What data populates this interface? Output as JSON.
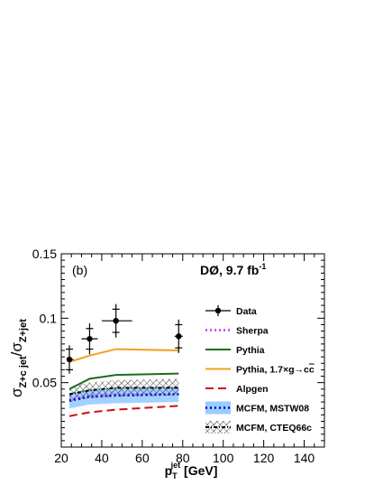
{
  "chart_data": {
    "type": "line",
    "panel_label": "(b)",
    "experiment_label": "DØ, 9.7 fb",
    "experiment_label_sup": "-1",
    "ylabel_main": "σ",
    "ylabel_num_sub": "Z+c jet",
    "ylabel_slash": "/σ",
    "ylabel_den_sub": "Z+jet",
    "xlabel_main": "p",
    "xlabel_sub": "T",
    "xlabel_sup": "jet",
    "xlabel_unit": " [GeV]",
    "xlim": [
      20,
      150
    ],
    "ylim": [
      0,
      0.15
    ],
    "x_ticks": [
      20,
      40,
      60,
      80,
      100,
      120,
      140
    ],
    "y_ticks": [
      0.05,
      0.1,
      0.15
    ],
    "x_tick_labels": [
      "20",
      "40",
      "60",
      "80",
      "100",
      "120",
      "140"
    ],
    "y_tick_labels": [
      "0.05",
      "0.1",
      "0.15"
    ],
    "data": {
      "name": "Data",
      "x": [
        24,
        34,
        47,
        78
      ],
      "y": [
        0.068,
        0.084,
        0.098,
        0.086
      ],
      "xerr_lo": [
        24,
        30,
        40,
        76
      ],
      "xerr_hi": [
        26,
        38,
        55,
        80
      ],
      "stat_err": [
        0.008,
        0.008,
        0.009,
        0.009
      ],
      "tot_err": [
        0.011,
        0.012,
        0.013,
        0.013
      ]
    },
    "series": [
      {
        "name": "Sherpa",
        "x": [
          24,
          34,
          47,
          78
        ],
        "y": [
          0.037,
          0.04,
          0.041,
          0.041
        ],
        "color": "#cc33ff",
        "style": "dotted"
      },
      {
        "name": "Pythia",
        "x": [
          24,
          34,
          47,
          78
        ],
        "y": [
          0.045,
          0.053,
          0.056,
          0.057
        ],
        "color": "#1a6e1a",
        "style": "solid"
      },
      {
        "name": "Pythia, 1.7×g→cc",
        "x": [
          24,
          34,
          47,
          78
        ],
        "y": [
          0.066,
          0.071,
          0.076,
          0.075
        ],
        "color": "#f0a020",
        "style": "solid"
      },
      {
        "name": "Alpgen",
        "x": [
          24,
          34,
          47,
          78
        ],
        "y": [
          0.024,
          0.027,
          0.029,
          0.032
        ],
        "color": "#cc1111",
        "style": "dashed"
      },
      {
        "name": "MCFM, MSTW08",
        "x": [
          24,
          34,
          47,
          78
        ],
        "y": [
          0.036,
          0.039,
          0.04,
          0.041
        ],
        "band_lo": [
          0.03,
          0.033,
          0.034,
          0.035
        ],
        "band_hi": [
          0.042,
          0.045,
          0.046,
          0.047
        ],
        "color": "#0000cc",
        "band_color": "#99ccff",
        "style": "dotted"
      },
      {
        "name": "MCFM, CTEQ66c",
        "x": [
          24,
          34,
          47,
          78
        ],
        "y": [
          0.041,
          0.044,
          0.046,
          0.046
        ],
        "band_lo": [
          0.035,
          0.038,
          0.039,
          0.04
        ],
        "band_hi": [
          0.047,
          0.05,
          0.052,
          0.053
        ],
        "color": "#000000",
        "style": "dashdot"
      }
    ],
    "legend": {
      "placement": "right",
      "entries": [
        {
          "label": "Data",
          "kind": "data"
        },
        {
          "label": "Sherpa",
          "kind": "line",
          "series": 0
        },
        {
          "label": "Pythia",
          "kind": "line",
          "series": 1
        },
        {
          "label": "Pythia, 1.7×g→c",
          "label_bar": "c",
          "kind": "line",
          "series": 2
        },
        {
          "label": "Alpgen",
          "kind": "line",
          "series": 3
        },
        {
          "label": "MCFM, MSTW08",
          "kind": "band",
          "series": 4
        },
        {
          "label": "MCFM, CTEQ66c",
          "kind": "hatch",
          "series": 5
        }
      ]
    }
  }
}
